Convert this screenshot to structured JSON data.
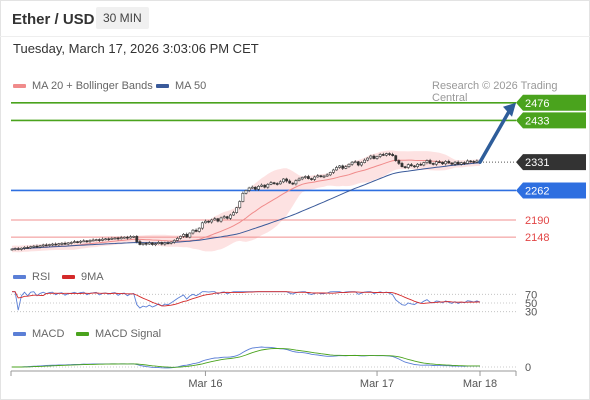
{
  "header": {
    "title": "Ether / USD",
    "timeframe": "30 MIN",
    "timestamp": "Tuesday, March 17, 2026 3:03:06 PM CET"
  },
  "credit": "Research © 2026 Trading Central",
  "colors": {
    "resistance": "#4aa31d",
    "support": "#2e6fe0",
    "minor": "#f08f8f",
    "minor_text": "#e24646",
    "ma20": "#f08b8b",
    "bb_fill": "#fde2e2",
    "ma50": "#3a5a9a",
    "candle_up": "#ffffff",
    "candle_down": "#333333",
    "rsi": "#5b7fd6",
    "rsi_ma": "#d42a2a",
    "macd": "#5b7fd6",
    "macd_signal": "#4aa31d",
    "arrow": "#2e5d9a",
    "current_price_bg": "#333333"
  },
  "chart_data": [
    {
      "type": "candlestick",
      "panel": "price",
      "legend": [
        {
          "name": "MA 20 + Bollinger Bands",
          "color": "#f08b8b"
        },
        {
          "name": "MA 50",
          "color": "#3a5a9a"
        }
      ],
      "ylim": [
        2080,
        2495
      ],
      "x_ticks": [
        {
          "label": "Mar 16",
          "index": 62
        },
        {
          "label": "Mar 17",
          "index": 117
        },
        {
          "label": "Mar 18",
          "index": 150
        }
      ],
      "levels": [
        {
          "value": 2476,
          "label": "2476",
          "kind": "resistance"
        },
        {
          "value": 2433,
          "label": "2433",
          "kind": "resistance"
        },
        {
          "value": 2331,
          "label": "2331",
          "kind": "current"
        },
        {
          "value": 2262,
          "label": "2262",
          "kind": "support"
        },
        {
          "value": 2190,
          "label": "2190",
          "kind": "minor"
        },
        {
          "value": 2148,
          "label": "2148",
          "kind": "minor"
        }
      ],
      "closes": [
        2119,
        2120,
        2118,
        2121,
        2123,
        2122,
        2125,
        2126,
        2124,
        2127,
        2129,
        2128,
        2130,
        2131,
        2129,
        2132,
        2133,
        2131,
        2134,
        2135,
        2137,
        2136,
        2138,
        2139,
        2137,
        2140,
        2141,
        2142,
        2140,
        2143,
        2144,
        2143,
        2145,
        2146,
        2144,
        2147,
        2148,
        2146,
        2149,
        2150,
        2137,
        2130,
        2133,
        2131,
        2134,
        2130,
        2132,
        2135,
        2131,
        2134,
        2133,
        2136,
        2140,
        2145,
        2150,
        2155,
        2148,
        2158,
        2165,
        2162,
        2170,
        2183,
        2187,
        2185,
        2190,
        2193,
        2187,
        2195,
        2198,
        2194,
        2202,
        2208,
        2220,
        2235,
        2255,
        2262,
        2268,
        2270,
        2265,
        2272,
        2275,
        2270,
        2277,
        2281,
        2279,
        2278,
        2283,
        2290,
        2285,
        2280,
        2278,
        2286,
        2290,
        2294,
        2296,
        2291,
        2289,
        2295,
        2298,
        2296,
        2297,
        2300,
        2306,
        2312,
        2318,
        2322,
        2316,
        2320,
        2326,
        2331,
        2332,
        2324,
        2330,
        2336,
        2341,
        2346,
        2340,
        2345,
        2350,
        2348,
        2352,
        2350,
        2347,
        2335,
        2328,
        2320,
        2318,
        2325,
        2322,
        2320,
        2326,
        2324,
        2330,
        2335,
        2328,
        2326,
        2332,
        2331,
        2327,
        2333,
        2329,
        2326,
        2331,
        2326,
        2330,
        2328,
        2334,
        2333,
        2331,
        2334,
        2331
      ]
    },
    {
      "type": "line",
      "panel": "rsi",
      "legend": [
        {
          "name": "RSI",
          "color": "#5b7fd6"
        },
        {
          "name": "9MA",
          "color": "#d42a2a"
        }
      ],
      "ylim": [
        20,
        80
      ],
      "y_ticks": [
        {
          "value": 70,
          "label": "70"
        },
        {
          "value": 50,
          "label": "50"
        },
        {
          "value": 30,
          "label": "30"
        }
      ]
    },
    {
      "type": "line",
      "panel": "macd",
      "legend": [
        {
          "name": "MACD",
          "color": "#5b7fd6"
        },
        {
          "name": "MACD Signal",
          "color": "#4aa31d"
        }
      ],
      "y_ticks": [
        {
          "value": 0,
          "label": "0"
        }
      ]
    }
  ]
}
